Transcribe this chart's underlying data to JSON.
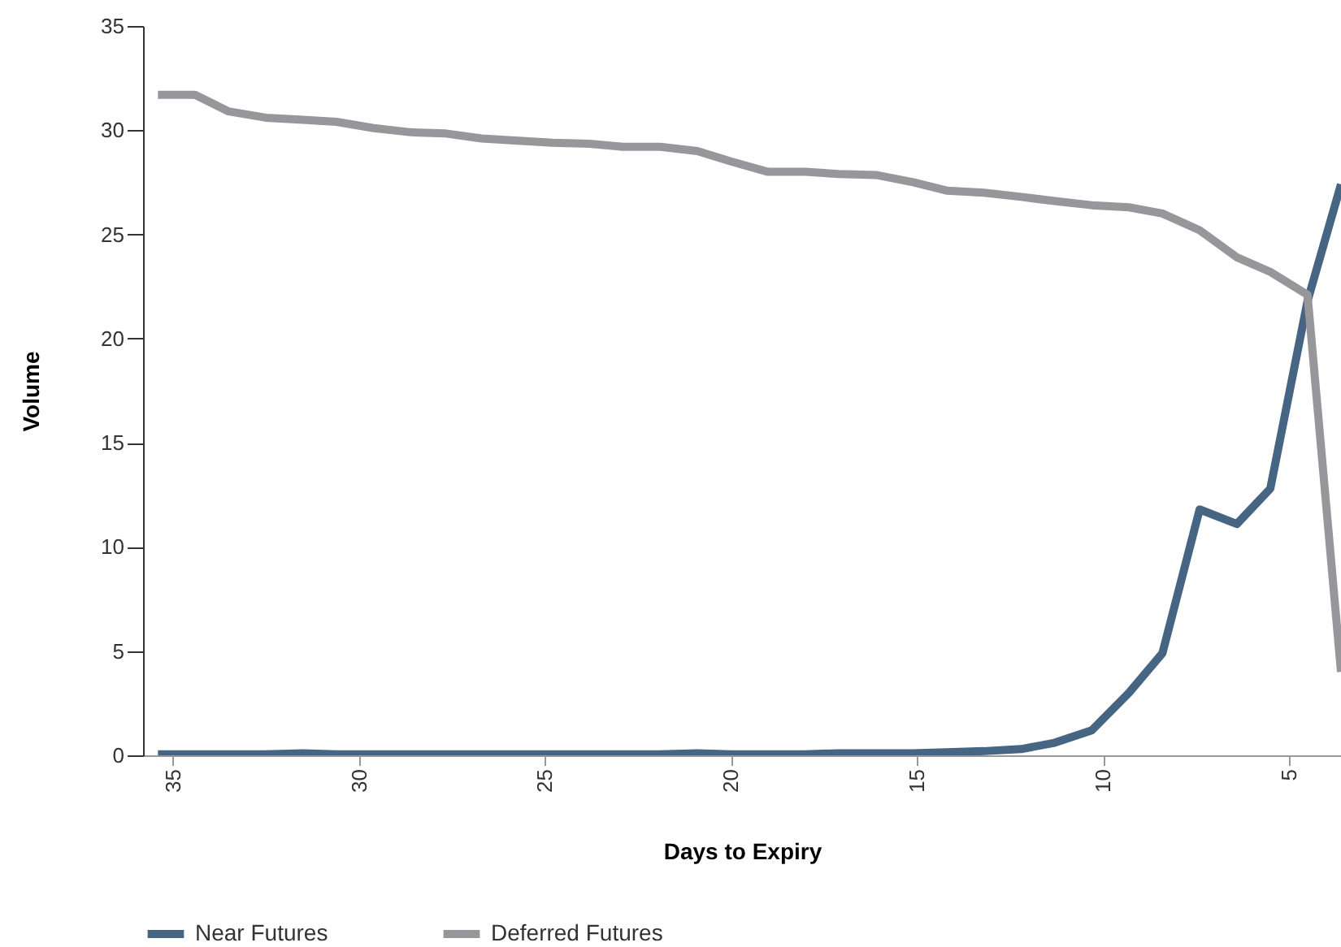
{
  "chart_data": {
    "type": "line",
    "xlabel": "Days to Expiry",
    "ylabel": "Volume",
    "x": [
      35.4,
      34.4,
      33.5,
      32.5,
      31.5,
      30.6,
      29.6,
      28.6,
      27.7,
      26.7,
      25.8,
      24.8,
      23.8,
      22.9,
      21.9,
      20.9,
      20.0,
      19.0,
      18.0,
      17.1,
      16.1,
      15.1,
      14.2,
      13.2,
      12.2,
      11.3,
      10.3,
      9.3,
      8.4,
      7.4,
      6.4,
      5.5,
      4.5,
      3.6
    ],
    "series": [
      {
        "name": "Near Futures",
        "color": "#456583",
        "values": [
          0.05,
          0.05,
          0.05,
          0.05,
          0.1,
          0.05,
          0.05,
          0.05,
          0.05,
          0.05,
          0.05,
          0.05,
          0.05,
          0.05,
          0.05,
          0.1,
          0.05,
          0.05,
          0.05,
          0.1,
          0.1,
          0.1,
          0.15,
          0.2,
          0.3,
          0.6,
          1.2,
          3.0,
          4.9,
          11.8,
          11.1,
          12.8,
          21.8,
          27.4
        ]
      },
      {
        "name": "Deferred Futures",
        "color": "#97979b",
        "values": [
          31.7,
          31.7,
          30.9,
          30.6,
          30.5,
          30.4,
          30.1,
          29.9,
          29.85,
          29.6,
          29.5,
          29.4,
          29.35,
          29.2,
          29.2,
          29.0,
          28.5,
          28.0,
          28.0,
          27.9,
          27.85,
          27.5,
          27.1,
          27.0,
          26.8,
          26.6,
          26.4,
          26.3,
          26.0,
          25.2,
          23.9,
          23.2,
          22.1,
          4.0
        ]
      }
    ],
    "xlim": [
      35.8,
      3.6
    ],
    "xticks": [
      35,
      30,
      25,
      20,
      15,
      10,
      5
    ],
    "ylim": [
      0,
      35
    ],
    "yticks": [
      0,
      5,
      10,
      15,
      20,
      25,
      30,
      35
    ],
    "grid": false,
    "legend": "bottom",
    "marker": "none",
    "line_style": "solid"
  }
}
